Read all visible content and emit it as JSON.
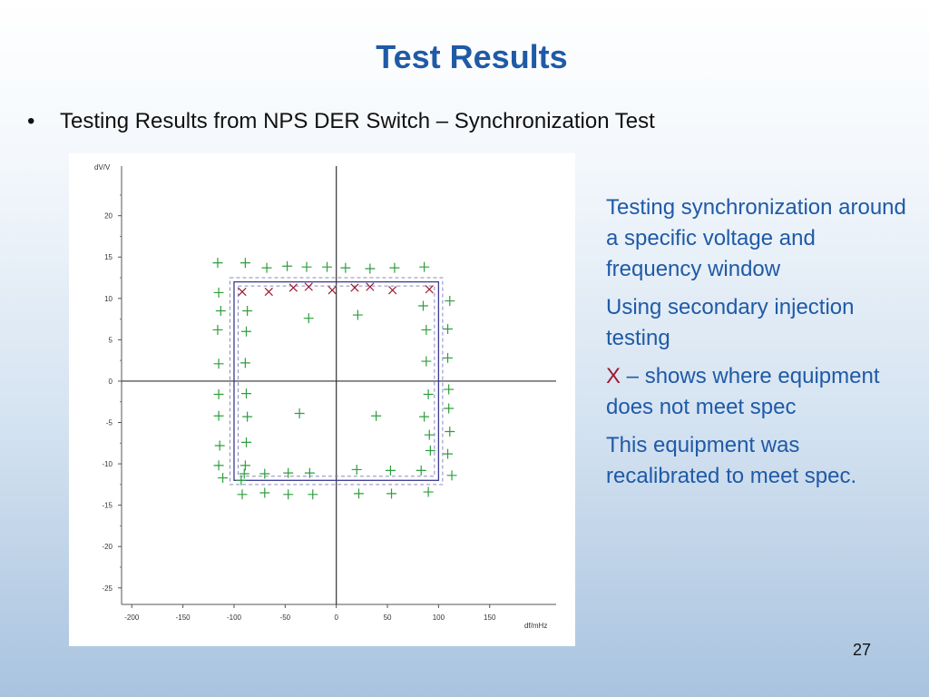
{
  "slide": {
    "title": "Test Results",
    "bullet": "Testing Results from NPS DER Switch – Synchronization Test",
    "side_paragraphs": [
      "Testing synchronization around a specific voltage and frequency window",
      "Using secondary injection testing"
    ],
    "x_symbol": "X",
    "x_note": " – shows where equipment does not meet spec",
    "closing_paragraph": "This equipment was recalibrated to meet spec.",
    "page_number": "27"
  },
  "chart_data": {
    "type": "scatter",
    "xlabel": "df/mHz",
    "ylabel": "dV/V",
    "xlim": [
      -210,
      215
    ],
    "ylim": [
      -27,
      26
    ],
    "x_ticks": [
      "-200",
      "-150",
      "-100",
      "-50",
      "0",
      "50",
      "100",
      "150"
    ],
    "y_ticks": [
      "20",
      "15",
      "10",
      "5",
      "0",
      "-5",
      "-10",
      "-15",
      "-20",
      "-25"
    ],
    "colors": {
      "pass": "#2e9e3e",
      "fail": "#9b1b30",
      "window": "#3b3b8f",
      "window_dashed": "#8a8ac0"
    },
    "window_solid": {
      "x": [
        -100,
        100
      ],
      "y": [
        -12,
        12
      ]
    },
    "window_dashed_outer": {
      "x": [
        -104,
        104
      ],
      "y": [
        -12.5,
        12.5
      ]
    },
    "window_dashed_inner": {
      "x": [
        -96,
        96
      ],
      "y": [
        -11.5,
        11.5
      ]
    },
    "series": [
      {
        "marker": "plus",
        "points": [
          [
            -116,
            14.3
          ],
          [
            -89,
            14.3
          ],
          [
            -68,
            13.7
          ],
          [
            -48,
            13.9
          ],
          [
            -29,
            13.8
          ],
          [
            -9,
            13.8
          ],
          [
            9,
            13.7
          ],
          [
            33,
            13.6
          ],
          [
            57,
            13.7
          ],
          [
            86,
            13.8
          ],
          [
            -115,
            10.7
          ],
          [
            -113,
            8.5
          ],
          [
            -87,
            8.5
          ],
          [
            -116,
            6.2
          ],
          [
            -88,
            6.0
          ],
          [
            -27,
            7.6
          ],
          [
            21,
            8.0
          ],
          [
            85,
            9.1
          ],
          [
            111,
            9.7
          ],
          [
            88,
            6.2
          ],
          [
            109,
            6.3
          ],
          [
            -115,
            2.1
          ],
          [
            -89,
            2.2
          ],
          [
            88,
            2.4
          ],
          [
            109,
            2.8
          ],
          [
            -115,
            -1.6
          ],
          [
            -88,
            -1.5
          ],
          [
            90,
            -1.6
          ],
          [
            110,
            -1.0
          ],
          [
            -115,
            -4.2
          ],
          [
            -87,
            -4.3
          ],
          [
            -36,
            -3.9
          ],
          [
            39,
            -4.2
          ],
          [
            86,
            -4.3
          ],
          [
            110,
            -3.3
          ],
          [
            -114,
            -7.8
          ],
          [
            -88,
            -7.4
          ],
          [
            91,
            -6.5
          ],
          [
            111,
            -6.1
          ],
          [
            92,
            -8.4
          ],
          [
            109,
            -8.8
          ],
          [
            -115,
            -10.2
          ],
          [
            -89,
            -10.2
          ],
          [
            -90,
            -11.2
          ],
          [
            -70,
            -11.2
          ],
          [
            -47,
            -11.1
          ],
          [
            -26,
            -11.1
          ],
          [
            20,
            -10.7
          ],
          [
            53,
            -10.8
          ],
          [
            83,
            -10.8
          ],
          [
            113,
            -11.4
          ],
          [
            -111,
            -11.7
          ],
          [
            -93,
            -12.0
          ],
          [
            -92,
            -13.7
          ],
          [
            -70,
            -13.5
          ],
          [
            -47,
            -13.7
          ],
          [
            -23,
            -13.7
          ],
          [
            22,
            -13.6
          ],
          [
            54,
            -13.6
          ],
          [
            90,
            -13.4
          ]
        ]
      },
      {
        "marker": "cross",
        "points": [
          [
            -92,
            10.8
          ],
          [
            -66,
            10.8
          ],
          [
            -42,
            11.3
          ],
          [
            -27,
            11.4
          ],
          [
            -4,
            11.0
          ],
          [
            18,
            11.3
          ],
          [
            33,
            11.4
          ],
          [
            55,
            11.0
          ],
          [
            91,
            11.1
          ]
        ]
      }
    ]
  }
}
